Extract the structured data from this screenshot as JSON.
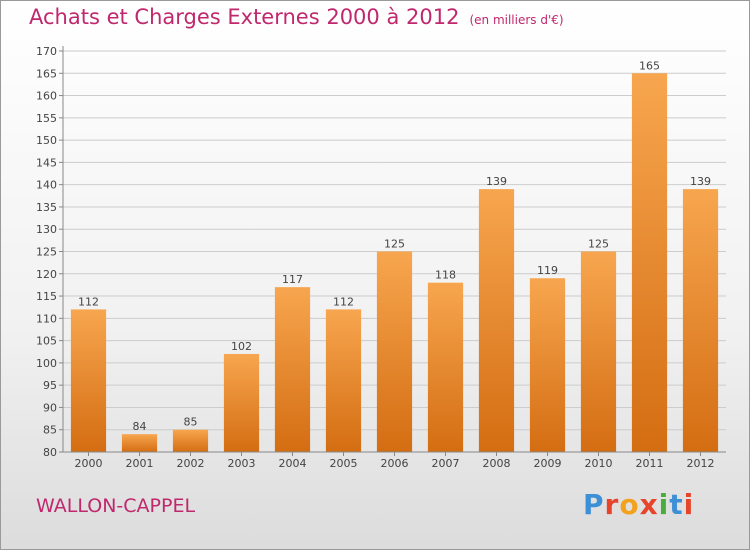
{
  "header": {
    "title": "Achats et Charges Externes 2000 à 2012",
    "unit": "(en milliers d'€)"
  },
  "footer": {
    "commune": "WALLON-CAPPEL",
    "brand": "Proxiti"
  },
  "colors": {
    "title": "#c0286e",
    "bar_light": "#f7a64f",
    "bar_dark": "#d46d12",
    "grid": "#cccccc"
  },
  "chart_data": {
    "type": "bar",
    "title": "Achats et Charges Externes 2000 à 2012",
    "xlabel": "",
    "ylabel": "",
    "categories": [
      "2000",
      "2001",
      "2002",
      "2003",
      "2004",
      "2005",
      "2006",
      "2007",
      "2008",
      "2009",
      "2010",
      "2011",
      "2012"
    ],
    "values": [
      112,
      84,
      85,
      102,
      117,
      112,
      125,
      118,
      139,
      119,
      125,
      165,
      139
    ],
    "ylim": [
      80,
      170
    ],
    "ytick_step": 5,
    "grid": true,
    "data_labels": true
  }
}
